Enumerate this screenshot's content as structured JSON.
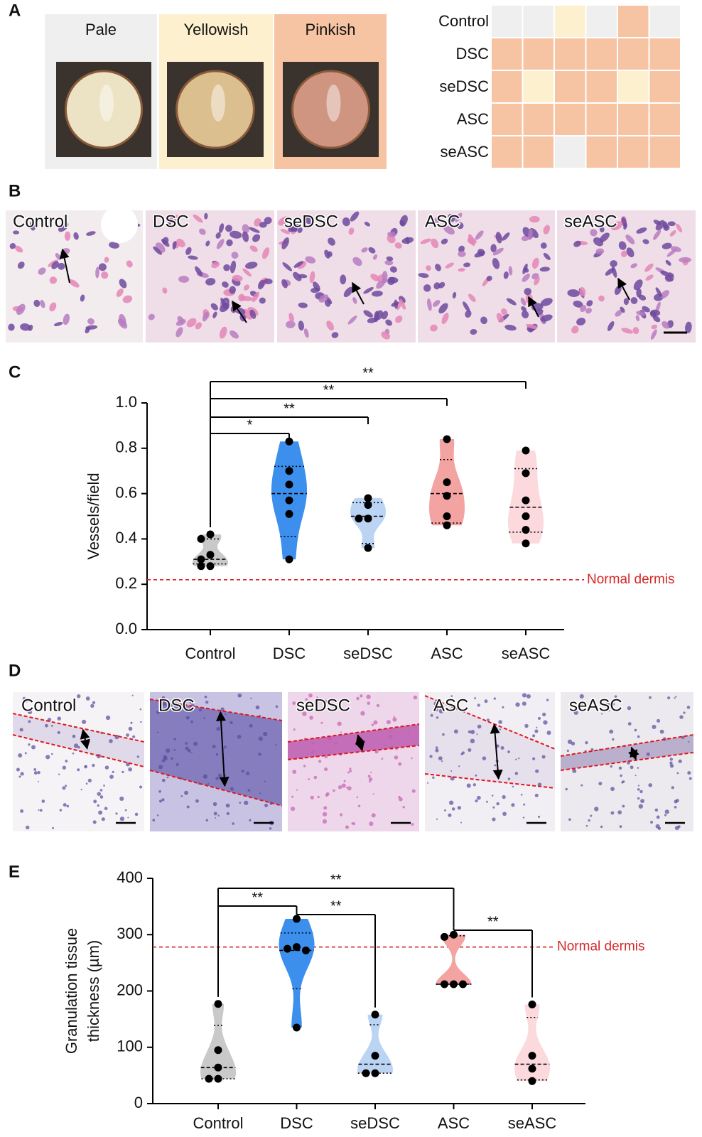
{
  "panel_labels": [
    "A",
    "B",
    "C",
    "D",
    "E"
  ],
  "appearance": {
    "columns": [
      {
        "label": "Pale",
        "color": "#efefef"
      },
      {
        "label": "Yellowish",
        "color": "#fdf0cf"
      },
      {
        "label": "Pinkish",
        "color": "#f6c3a3"
      }
    ],
    "rows": [
      "Control",
      "DSC",
      "seDSC",
      "ASC",
      "seASC"
    ],
    "cells": [
      [
        0,
        0,
        1,
        0,
        2,
        0
      ],
      [
        2,
        2,
        2,
        2,
        2,
        2
      ],
      [
        2,
        1,
        2,
        2,
        1,
        2
      ],
      [
        2,
        2,
        2,
        2,
        2,
        2
      ],
      [
        2,
        2,
        0,
        2,
        2,
        2
      ]
    ]
  },
  "histology_b": {
    "labels": [
      "Control",
      "DSC",
      "seDSC",
      "ASC",
      "seASC"
    ]
  },
  "histology_d": {
    "labels": [
      "Control",
      "DSC",
      "seDSC",
      "ASC",
      "seASC"
    ]
  },
  "chart_data": [
    {
      "type": "violin",
      "categories": [
        "Control",
        "DSC",
        "seDSC",
        "ASC",
        "seASC"
      ],
      "ylabel": [
        "Vessels/field"
      ],
      "ylim": [
        0,
        1.0
      ],
      "yticks": [
        {
          "value": 0,
          "label": "0.0"
        },
        {
          "value": 0.2,
          "label": "0.2"
        },
        {
          "value": 0.4,
          "label": "0.4"
        },
        {
          "value": 0.6,
          "label": "0.6"
        },
        {
          "value": 0.8,
          "label": "0.8"
        },
        {
          "value": 1.0,
          "label": "1.0"
        }
      ],
      "series": [
        {
          "color": "#c9c9c9",
          "values": [
            0.42,
            0.4,
            0.33,
            0.31,
            0.28,
            0.28
          ],
          "median": 0.31,
          "quartiles": [
            0.29,
            0.4
          ]
        },
        {
          "color": "#3d8fee",
          "values": [
            0.83,
            0.7,
            0.64,
            0.57,
            0.51,
            0.31
          ],
          "median": 0.6,
          "quartiles": [
            0.41,
            0.72
          ]
        },
        {
          "color": "#bcd4f4",
          "values": [
            0.58,
            0.55,
            0.49,
            0.49,
            0.36
          ],
          "median": 0.5,
          "quartiles": [
            0.38,
            0.56
          ]
        },
        {
          "color": "#f4a3a3",
          "values": [
            0.84,
            0.65,
            0.59,
            0.5,
            0.46
          ],
          "median": 0.6,
          "quartiles": [
            0.47,
            0.75
          ]
        },
        {
          "color": "#fbd9dc",
          "values": [
            0.79,
            0.69,
            0.57,
            0.5,
            0.44,
            0.38
          ],
          "median": 0.54,
          "quartiles": [
            0.43,
            0.71
          ]
        }
      ],
      "reference": {
        "value": 0.22,
        "label": "Normal dermis",
        "color": "#d62728"
      },
      "comparisons": [
        {
          "groups": [
            "Control",
            "DSC"
          ],
          "label": "*"
        },
        {
          "groups": [
            "Control",
            "seDSC"
          ],
          "label": "**"
        },
        {
          "groups": [
            "Control",
            "ASC"
          ],
          "label": "**"
        },
        {
          "groups": [
            "Control",
            "seASC"
          ],
          "label": "**"
        }
      ]
    },
    {
      "type": "violin",
      "categories": [
        "Control",
        "DSC",
        "seDSC",
        "ASC",
        "seASC"
      ],
      "ylabel": [
        "Granulation tissue",
        "thickness (µm)"
      ],
      "ylim": [
        0,
        400
      ],
      "yticks": [
        0,
        100,
        200,
        300,
        400
      ],
      "series": [
        {
          "color": "#c9c9c9",
          "values": [
            177,
            95,
            64,
            44,
            44
          ],
          "median": 64,
          "quartiles": [
            44,
            139
          ]
        },
        {
          "color": "#3d8fee",
          "values": [
            328,
            278,
            275,
            272,
            135
          ],
          "median": 272,
          "quartiles": [
            204,
            303
          ]
        },
        {
          "color": "#bcd4f4",
          "values": [
            158,
            85,
            54,
            54
          ],
          "median": 70,
          "quartiles": [
            54,
            140
          ]
        },
        {
          "color": "#f4a3a3",
          "values": [
            300,
            296,
            212,
            212,
            212
          ],
          "median": 212,
          "quartiles": [
            212,
            298
          ]
        },
        {
          "color": "#fbd9dc",
          "values": [
            176,
            85,
            62,
            40
          ],
          "median": 70,
          "quartiles": [
            42,
            153
          ]
        }
      ],
      "reference": {
        "value": 278,
        "label": "Normal dermis",
        "color": "#d62728"
      },
      "comparisons": [
        {
          "groups": [
            "Control",
            "DSC"
          ],
          "label": "**"
        },
        {
          "groups": [
            "Control",
            "ASC"
          ],
          "label": "**"
        },
        {
          "groups": [
            "DSC",
            "seDSC"
          ],
          "label": "**"
        },
        {
          "groups": [
            "ASC",
            "seASC"
          ],
          "label": "**"
        }
      ]
    }
  ]
}
